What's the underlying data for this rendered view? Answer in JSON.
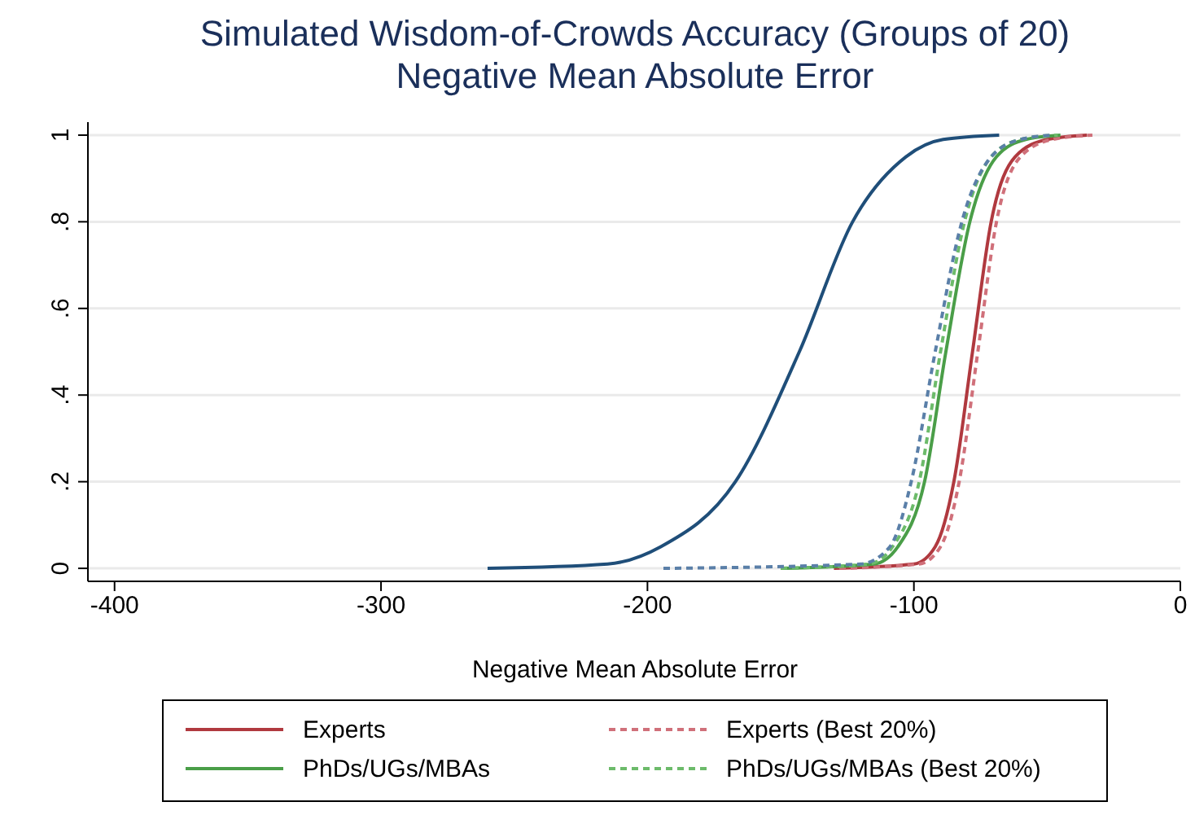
{
  "chart_data": {
    "type": "line",
    "title": "Simulated Wisdom-of-Crowds Accuracy (Groups of 20)",
    "subtitle": "Negative Mean Absolute Error",
    "xlabel": "Negative Mean Absolute Error",
    "xlim": [
      -410,
      0
    ],
    "xticks": [
      -400,
      -300,
      -200,
      -100,
      0
    ],
    "ylim": [
      -0.03,
      1.03
    ],
    "yticks": [
      0,
      {
        "value": 0.2,
        "label": ".2"
      },
      {
        "value": 0.4,
        "label": ".4"
      },
      {
        "value": 0.6,
        "label": ".6"
      },
      {
        "value": 0.8,
        "label": ".8"
      },
      1
    ],
    "grid": "y",
    "legend": "bottom",
    "marker": "none",
    "series": [
      {
        "name": "Experts",
        "color": "#b0393f",
        "line_style": "solid",
        "x": [
          -130,
          -100,
          -92,
          -85,
          -78,
          -71,
          -62,
          -50,
          -35
        ],
        "values": [
          0,
          0.01,
          0.05,
          0.2,
          0.5,
          0.8,
          0.95,
          0.99,
          1
        ]
      },
      {
        "name": "Experts (Best 20%)",
        "color": "#d0707a",
        "line_style": "dashed",
        "x": [
          -128,
          -98,
          -90,
          -83,
          -76,
          -69,
          -60,
          -48,
          -33
        ],
        "values": [
          0,
          0.01,
          0.05,
          0.2,
          0.5,
          0.8,
          0.95,
          0.99,
          1
        ]
      },
      {
        "name": "PhDs/UGs/MBAs",
        "color": "#4a9e48",
        "line_style": "solid",
        "x": [
          -150,
          -115,
          -106,
          -96,
          -88,
          -79,
          -69,
          -58,
          -45
        ],
        "values": [
          0,
          0.01,
          0.05,
          0.2,
          0.5,
          0.8,
          0.95,
          0.99,
          1
        ]
      },
      {
        "name": "PhDs/UGs/MBAs (Best 20%)",
        "color": "#6cbb6a",
        "line_style": "dashed",
        "x": [
          -150,
          -117,
          -108,
          -98,
          -90,
          -81,
          -71,
          -60,
          -46
        ],
        "values": [
          0,
          0.01,
          0.05,
          0.2,
          0.5,
          0.8,
          0.95,
          0.99,
          1
        ]
      },
      {
        "color": "#1f4e79",
        "line_style": "solid",
        "x": [
          -260,
          -215,
          -195,
          -167,
          -143,
          -123,
          -103,
          -89,
          -68
        ],
        "values": [
          0,
          0.01,
          0.05,
          0.2,
          0.5,
          0.8,
          0.95,
          0.99,
          1
        ]
      },
      {
        "color": "#5a7fa8",
        "line_style": "dashed",
        "x": [
          -194,
          -120,
          -109,
          -101,
          -92,
          -82,
          -71,
          -60,
          -48
        ],
        "values": [
          0,
          0.01,
          0.05,
          0.2,
          0.5,
          0.8,
          0.95,
          0.99,
          1
        ]
      }
    ]
  }
}
